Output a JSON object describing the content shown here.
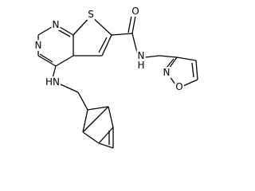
{
  "molecule": {
    "atoms": [
      {
        "label": "N"
      },
      {
        "label": "N"
      },
      {
        "label": "S"
      },
      {
        "label": "HN"
      },
      {
        "label": "O"
      },
      {
        "label": "N"
      },
      {
        "label": "H"
      },
      {
        "label": "N"
      },
      {
        "label": "O"
      }
    ]
  }
}
